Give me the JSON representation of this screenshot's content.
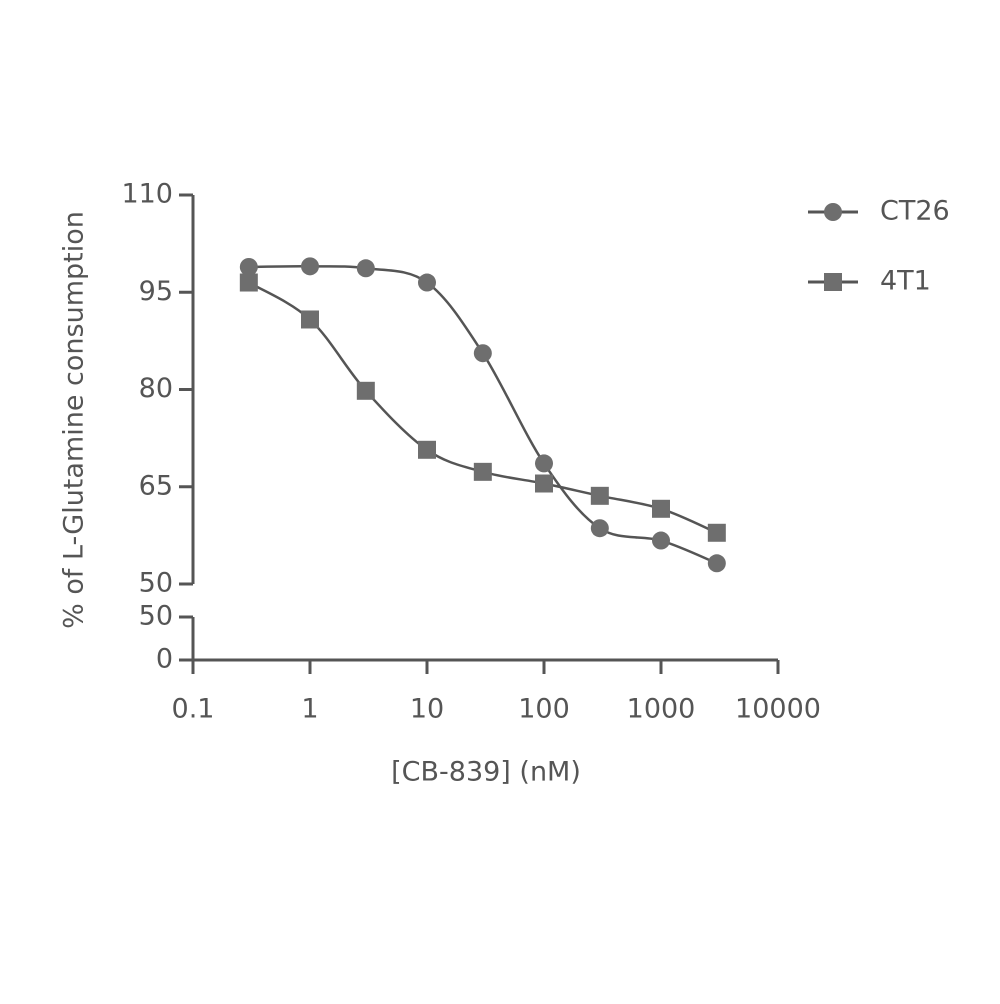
{
  "chart_data": {
    "type": "scatter-fit",
    "x_label": "[CB-839] (nM)",
    "y_label": "% of L-Glutamine consumption",
    "log_x": true,
    "xlim": [
      0.1,
      10000
    ],
    "xticks": [
      0.1,
      1,
      10,
      100,
      1000,
      10000
    ],
    "ylim": [
      50,
      110
    ],
    "yticks": [
      50,
      65,
      80,
      95,
      110
    ],
    "ylim_lower": [
      0,
      50
    ],
    "yticks_lower": [
      0,
      50
    ],
    "x": [
      0.3,
      1,
      3,
      10,
      30,
      100,
      300,
      1000,
      3000
    ],
    "legend": "top-right",
    "series": [
      {
        "name": "CT26",
        "marker": "circle",
        "color": "#6e6e6e",
        "values": [
          98.9,
          99,
          98.7,
          96.5,
          85.6,
          68.6,
          58.6,
          56.7,
          53.2
        ]
      },
      {
        "name": "4T1",
        "marker": "square",
        "color": "#6e6e6e",
        "values": [
          96.5,
          90.8,
          79.8,
          70.7,
          67.3,
          65.5,
          63.6,
          61.6,
          57.9
        ]
      }
    ]
  }
}
